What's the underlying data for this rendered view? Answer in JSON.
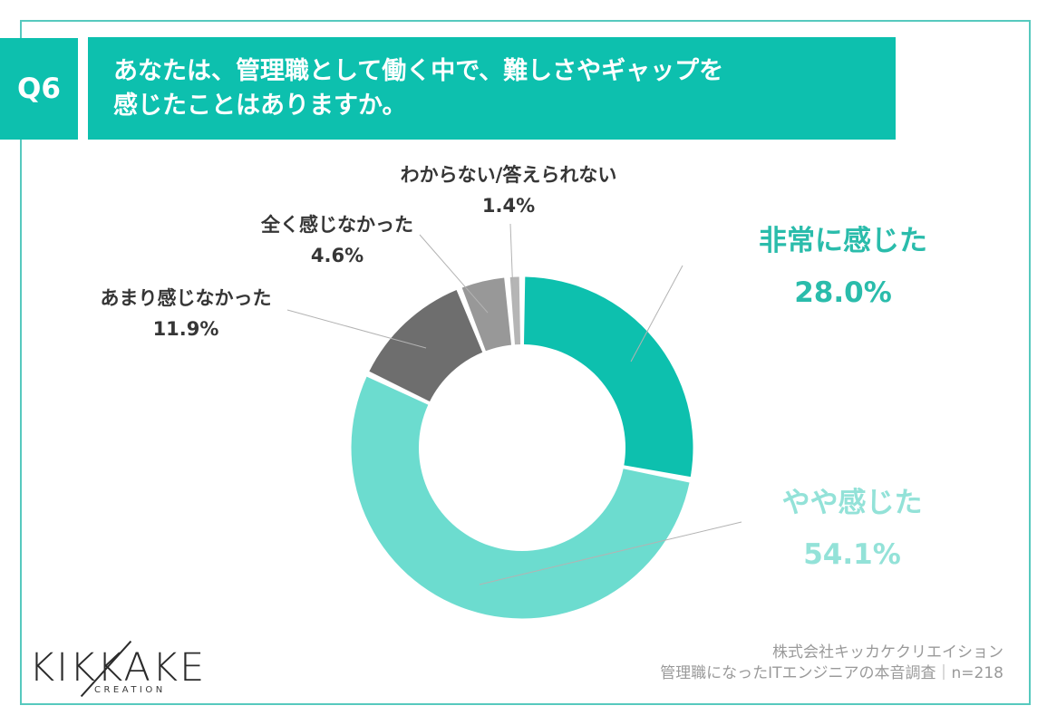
{
  "header": {
    "question_number": "Q6",
    "title_line1": "あなたは、管理職として働く中で、難しさやギャップを",
    "title_line2": "感じたことはありますか。"
  },
  "chart_data": {
    "type": "pie",
    "subtype": "donut",
    "title": "あなたは、管理職として働く中で、難しさやギャップを感じたことはありますか。",
    "sample_size": "n=218",
    "start_angle_deg": 0,
    "direction": "clockwise",
    "hole_ratio": 0.6,
    "legend_position": "callouts",
    "segments": [
      {
        "label": "非常に感じた",
        "value": 28.0,
        "display": "28.0%",
        "color": "#0dc0ae",
        "label_color": "#2abcab"
      },
      {
        "label": "やや感じた",
        "value": 54.1,
        "display": "54.1%",
        "color": "#6cdccf",
        "label_color": "#93e2d8"
      },
      {
        "label": "あまり感じなかった",
        "value": 11.9,
        "display": "11.9%",
        "color": "#6e6e6e",
        "label_color": "#363636"
      },
      {
        "label": "全く感じなかった",
        "value": 4.6,
        "display": "4.6%",
        "color": "#989898",
        "label_color": "#363636"
      },
      {
        "label": "わからない/答えられない",
        "value": 1.4,
        "display": "1.4%",
        "color": "#b5b5b5",
        "label_color": "#363636"
      }
    ]
  },
  "logo": {
    "title": "KIKKAKE",
    "subtitle": "CREATION"
  },
  "footer": {
    "line1": "株式会社キッカケクリエイション",
    "line2": "管理職になったITエンジニアの本音調査｜n=218"
  },
  "colors": {
    "accent_teal": "#0dc0ae",
    "light_teal": "#6cdccf",
    "border_teal": "#56c9be",
    "dark_gray": "#6e6e6e",
    "mid_gray": "#989898",
    "light_gray": "#b5b5b5",
    "text_dark": "#363636",
    "footer_gray": "#9a9a9a",
    "leader_line": "#b3b3b3"
  }
}
